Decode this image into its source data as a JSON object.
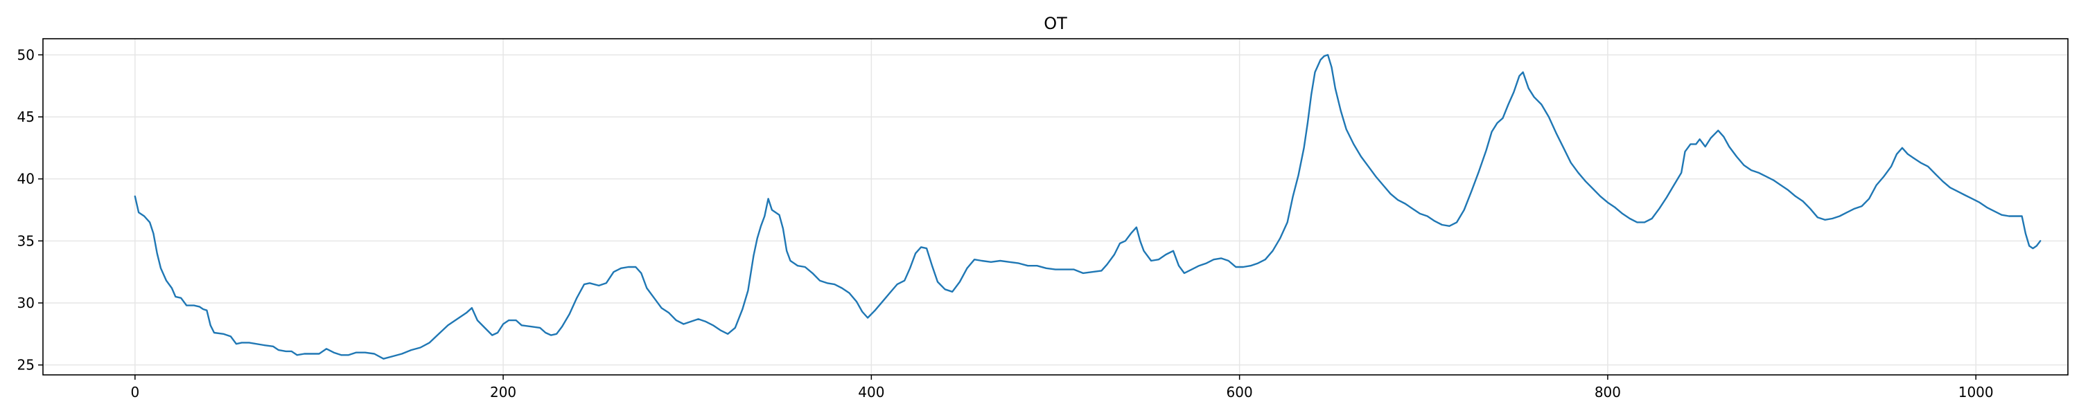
{
  "chart_data": {
    "type": "line",
    "title": "OT",
    "xlabel": "",
    "ylabel": "",
    "xlim": [
      -50,
      1050
    ],
    "ylim": [
      24.2,
      51.3
    ],
    "xticks": [
      0,
      200,
      400,
      600,
      800,
      1000
    ],
    "yticks": [
      25,
      30,
      35,
      40,
      45,
      50
    ],
    "grid": true,
    "legend": "none",
    "series": [
      {
        "color": "#1f77b4",
        "points": [
          [
            0,
            38.6
          ],
          [
            2,
            37.3
          ],
          [
            5,
            37.0
          ],
          [
            8,
            36.5
          ],
          [
            10,
            35.6
          ],
          [
            12,
            34.0
          ],
          [
            14,
            32.8
          ],
          [
            17,
            31.8
          ],
          [
            20,
            31.2
          ],
          [
            22,
            30.5
          ],
          [
            25,
            30.4
          ],
          [
            28,
            29.8
          ],
          [
            32,
            29.8
          ],
          [
            35,
            29.7
          ],
          [
            37,
            29.5
          ],
          [
            39,
            29.4
          ],
          [
            41,
            28.2
          ],
          [
            43,
            27.6
          ],
          [
            48,
            27.5
          ],
          [
            52,
            27.3
          ],
          [
            55,
            26.7
          ],
          [
            58,
            26.8
          ],
          [
            62,
            26.8
          ],
          [
            70,
            26.6
          ],
          [
            75,
            26.5
          ],
          [
            78,
            26.2
          ],
          [
            82,
            26.1
          ],
          [
            85,
            26.1
          ],
          [
            88,
            25.8
          ],
          [
            92,
            25.9
          ],
          [
            96,
            25.9
          ],
          [
            100,
            25.9
          ],
          [
            104,
            26.3
          ],
          [
            108,
            26.0
          ],
          [
            112,
            25.8
          ],
          [
            116,
            25.8
          ],
          [
            120,
            26.0
          ],
          [
            125,
            26.0
          ],
          [
            130,
            25.9
          ],
          [
            135,
            25.5
          ],
          [
            140,
            25.7
          ],
          [
            145,
            25.9
          ],
          [
            150,
            26.2
          ],
          [
            155,
            26.4
          ],
          [
            160,
            26.8
          ],
          [
            165,
            27.5
          ],
          [
            170,
            28.2
          ],
          [
            175,
            28.7
          ],
          [
            180,
            29.2
          ],
          [
            183,
            29.6
          ],
          [
            186,
            28.6
          ],
          [
            190,
            28.0
          ],
          [
            194,
            27.4
          ],
          [
            197,
            27.6
          ],
          [
            200,
            28.3
          ],
          [
            203,
            28.6
          ],
          [
            207,
            28.6
          ],
          [
            210,
            28.2
          ],
          [
            215,
            28.1
          ],
          [
            220,
            28.0
          ],
          [
            223,
            27.6
          ],
          [
            226,
            27.4
          ],
          [
            229,
            27.5
          ],
          [
            232,
            28.1
          ],
          [
            236,
            29.1
          ],
          [
            240,
            30.4
          ],
          [
            244,
            31.5
          ],
          [
            247,
            31.6
          ],
          [
            252,
            31.4
          ],
          [
            256,
            31.6
          ],
          [
            260,
            32.5
          ],
          [
            264,
            32.8
          ],
          [
            268,
            32.9
          ],
          [
            272,
            32.9
          ],
          [
            275,
            32.4
          ],
          [
            278,
            31.2
          ],
          [
            282,
            30.4
          ],
          [
            286,
            29.6
          ],
          [
            290,
            29.2
          ],
          [
            294,
            28.6
          ],
          [
            298,
            28.3
          ],
          [
            302,
            28.5
          ],
          [
            306,
            28.7
          ],
          [
            310,
            28.5
          ],
          [
            314,
            28.2
          ],
          [
            318,
            27.8
          ],
          [
            322,
            27.5
          ],
          [
            326,
            28.0
          ],
          [
            330,
            29.5
          ],
          [
            333,
            31.0
          ],
          [
            336,
            33.8
          ],
          [
            338,
            35.2
          ],
          [
            340,
            36.2
          ],
          [
            342,
            37.0
          ],
          [
            344,
            38.4
          ],
          [
            346,
            37.5
          ],
          [
            350,
            37.1
          ],
          [
            352,
            36.0
          ],
          [
            354,
            34.2
          ],
          [
            356,
            33.4
          ],
          [
            360,
            33.0
          ],
          [
            364,
            32.9
          ],
          [
            368,
            32.4
          ],
          [
            372,
            31.8
          ],
          [
            376,
            31.6
          ],
          [
            380,
            31.5
          ],
          [
            384,
            31.2
          ],
          [
            388,
            30.8
          ],
          [
            392,
            30.1
          ],
          [
            395,
            29.3
          ],
          [
            398,
            28.8
          ],
          [
            402,
            29.4
          ],
          [
            406,
            30.1
          ],
          [
            410,
            30.8
          ],
          [
            414,
            31.5
          ],
          [
            418,
            31.8
          ],
          [
            421,
            32.8
          ],
          [
            424,
            34.0
          ],
          [
            427,
            34.5
          ],
          [
            430,
            34.4
          ],
          [
            433,
            33.0
          ],
          [
            436,
            31.7
          ],
          [
            440,
            31.1
          ],
          [
            444,
            30.9
          ],
          [
            448,
            31.7
          ],
          [
            452,
            32.8
          ],
          [
            456,
            33.5
          ],
          [
            460,
            33.4
          ],
          [
            465,
            33.3
          ],
          [
            470,
            33.4
          ],
          [
            475,
            33.3
          ],
          [
            480,
            33.2
          ],
          [
            485,
            33.0
          ],
          [
            490,
            33.0
          ],
          [
            495,
            32.8
          ],
          [
            500,
            32.7
          ],
          [
            505,
            32.7
          ],
          [
            510,
            32.7
          ],
          [
            515,
            32.4
          ],
          [
            520,
            32.5
          ],
          [
            525,
            32.6
          ],
          [
            528,
            33.1
          ],
          [
            532,
            33.9
          ],
          [
            535,
            34.8
          ],
          [
            538,
            35.0
          ],
          [
            541,
            35.6
          ],
          [
            544,
            36.1
          ],
          [
            546,
            35.0
          ],
          [
            548,
            34.2
          ],
          [
            552,
            33.4
          ],
          [
            556,
            33.5
          ],
          [
            560,
            33.9
          ],
          [
            564,
            34.2
          ],
          [
            567,
            33.0
          ],
          [
            570,
            32.4
          ],
          [
            574,
            32.7
          ],
          [
            578,
            33.0
          ],
          [
            582,
            33.2
          ],
          [
            586,
            33.5
          ],
          [
            590,
            33.6
          ],
          [
            594,
            33.4
          ],
          [
            598,
            32.9
          ],
          [
            602,
            32.9
          ],
          [
            606,
            33.0
          ],
          [
            610,
            33.2
          ],
          [
            614,
            33.5
          ],
          [
            618,
            34.2
          ],
          [
            622,
            35.2
          ],
          [
            626,
            36.5
          ],
          [
            629,
            38.6
          ],
          [
            632,
            40.3
          ],
          [
            635,
            42.5
          ],
          [
            637,
            44.5
          ],
          [
            639,
            46.8
          ],
          [
            641,
            48.6
          ],
          [
            644,
            49.6
          ],
          [
            646,
            49.9
          ],
          [
            648,
            50.0
          ],
          [
            650,
            49.0
          ],
          [
            652,
            47.3
          ],
          [
            655,
            45.5
          ],
          [
            658,
            44.0
          ],
          [
            662,
            42.8
          ],
          [
            666,
            41.8
          ],
          [
            670,
            41.0
          ],
          [
            674,
            40.2
          ],
          [
            678,
            39.5
          ],
          [
            682,
            38.8
          ],
          [
            686,
            38.3
          ],
          [
            690,
            38.0
          ],
          [
            694,
            37.6
          ],
          [
            698,
            37.2
          ],
          [
            702,
            37.0
          ],
          [
            706,
            36.6
          ],
          [
            710,
            36.3
          ],
          [
            714,
            36.2
          ],
          [
            718,
            36.5
          ],
          [
            722,
            37.5
          ],
          [
            726,
            39.0
          ],
          [
            730,
            40.6
          ],
          [
            734,
            42.3
          ],
          [
            737,
            43.8
          ],
          [
            740,
            44.5
          ],
          [
            743,
            44.9
          ],
          [
            746,
            46.0
          ],
          [
            749,
            47.0
          ],
          [
            752,
            48.3
          ],
          [
            754,
            48.6
          ],
          [
            757,
            47.3
          ],
          [
            760,
            46.6
          ],
          [
            764,
            46.0
          ],
          [
            768,
            45.0
          ],
          [
            772,
            43.7
          ],
          [
            776,
            42.5
          ],
          [
            780,
            41.3
          ],
          [
            784,
            40.5
          ],
          [
            788,
            39.8
          ],
          [
            792,
            39.2
          ],
          [
            796,
            38.6
          ],
          [
            800,
            38.1
          ],
          [
            804,
            37.7
          ],
          [
            808,
            37.2
          ],
          [
            812,
            36.8
          ],
          [
            816,
            36.5
          ],
          [
            820,
            36.5
          ],
          [
            824,
            36.8
          ],
          [
            828,
            37.6
          ],
          [
            832,
            38.5
          ],
          [
            836,
            39.5
          ],
          [
            840,
            40.5
          ],
          [
            842,
            42.2
          ],
          [
            845,
            42.8
          ],
          [
            848,
            42.8
          ],
          [
            850,
            43.2
          ],
          [
            853,
            42.6
          ],
          [
            856,
            43.3
          ],
          [
            860,
            43.9
          ],
          [
            863,
            43.4
          ],
          [
            866,
            42.6
          ],
          [
            870,
            41.8
          ],
          [
            874,
            41.1
          ],
          [
            878,
            40.7
          ],
          [
            882,
            40.5
          ],
          [
            886,
            40.2
          ],
          [
            890,
            39.9
          ],
          [
            894,
            39.5
          ],
          [
            898,
            39.1
          ],
          [
            902,
            38.6
          ],
          [
            906,
            38.2
          ],
          [
            910,
            37.6
          ],
          [
            914,
            36.9
          ],
          [
            918,
            36.7
          ],
          [
            922,
            36.8
          ],
          [
            926,
            37.0
          ],
          [
            930,
            37.3
          ],
          [
            934,
            37.6
          ],
          [
            938,
            37.8
          ],
          [
            942,
            38.4
          ],
          [
            946,
            39.5
          ],
          [
            950,
            40.2
          ],
          [
            954,
            41.0
          ],
          [
            957,
            42.0
          ],
          [
            960,
            42.5
          ],
          [
            963,
            42.0
          ],
          [
            966,
            41.7
          ],
          [
            970,
            41.3
          ],
          [
            974,
            41.0
          ],
          [
            978,
            40.4
          ],
          [
            982,
            39.8
          ],
          [
            986,
            39.3
          ],
          [
            990,
            39.0
          ],
          [
            994,
            38.7
          ],
          [
            998,
            38.4
          ],
          [
            1002,
            38.1
          ],
          [
            1006,
            37.7
          ],
          [
            1010,
            37.4
          ],
          [
            1014,
            37.1
          ],
          [
            1018,
            37.0
          ],
          [
            1022,
            37.0
          ],
          [
            1025,
            37.0
          ],
          [
            1027,
            35.6
          ],
          [
            1029,
            34.6
          ],
          [
            1031,
            34.4
          ],
          [
            1033,
            34.6
          ],
          [
            1035,
            35.0
          ]
        ]
      }
    ]
  }
}
